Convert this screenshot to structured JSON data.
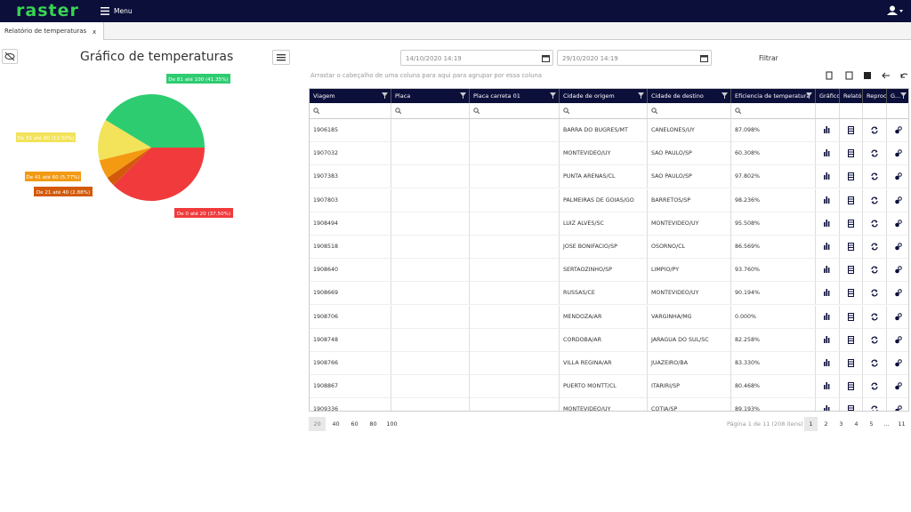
{
  "header": {
    "logo": "raster",
    "menu": "Menu"
  },
  "tab": {
    "title": "Relatório de temperaturas",
    "close": "x"
  },
  "chart_data": {
    "type": "pie",
    "title": "Gráfico de temperaturas",
    "values": [
      37.5,
      2.88,
      5.77,
      12.5,
      41.35
    ],
    "value_labels": [
      "De 0 até 20 (37.50%)",
      "De 21 até 40 (2.88%)",
      "De 41 até 60 (5.77%)",
      "De 61 até 80 (12.50%)",
      "De 81 até 100 (41.35%)"
    ],
    "colors": [
      "#f03a3c",
      "#d35a0a",
      "#f39a12",
      "#f2e35a",
      "#2ecc71"
    ]
  },
  "filter": {
    "start": "14/10/2020 14:19",
    "end": "29/10/2020 14:19",
    "button": "Filtrar"
  },
  "group_hint": "Arrastar o cabeçalho de uma coluna para aqui para agrupar por essa coluna",
  "table": {
    "columns": [
      "Viagem",
      "Placa",
      "Placa carreta 01",
      "Cidade de origem",
      "Cidade de destino",
      "Eficiencia de temperatura",
      "Gráfico",
      "Relatóri",
      "Reproce",
      "G..."
    ],
    "rows": [
      [
        "1906185",
        "BARRA DO BUGRES/MT",
        "CANELONES/UY",
        "87.098%"
      ],
      [
        "1907032",
        "MONTEVIDEO/UY",
        "SAO PAULO/SP",
        "60.308%"
      ],
      [
        "1907383",
        "PUNTA ARENAS/CL",
        "SAO PAULO/SP",
        "97.802%"
      ],
      [
        "1907803",
        "PALMEIRAS DE GOIAS/GO",
        "BARRETOS/SP",
        "98.236%"
      ],
      [
        "1908494",
        "LUIZ ALVES/SC",
        "MONTEVIDEO/UY",
        "95.508%"
      ],
      [
        "1908518",
        "JOSE BONIFACIO/SP",
        "OSORNO/CL",
        "86.569%"
      ],
      [
        "1908640",
        "SERTAOZINHO/SP",
        "LIMPIO/PY",
        "93.760%"
      ],
      [
        "1908669",
        "RUSSAS/CE",
        "MONTEVIDEO/UY",
        "90.194%"
      ],
      [
        "1908706",
        "MENDOZA/AR",
        "VARGINHA/MG",
        "0.000%"
      ],
      [
        "1908748",
        "CORDOBA/AR",
        "JARAGUA DO SUL/SC",
        "82.258%"
      ],
      [
        "1908766",
        "VILLA REGINA/AR",
        "JUAZEIRO/BA",
        "83.330%"
      ],
      [
        "1908867",
        "PUERTO MONTT/CL",
        "ITARIRI/SP",
        "80.468%"
      ],
      [
        "1909336",
        "MONTEVIDEO/UY",
        "COTIA/SP",
        "89.193%"
      ]
    ]
  },
  "pager": {
    "sizes": [
      "20",
      "40",
      "60",
      "80",
      "100"
    ],
    "info": "Página 1 de 11 (208 itens)",
    "pages": [
      "1",
      "2",
      "3",
      "4",
      "5",
      "...",
      "11"
    ]
  }
}
